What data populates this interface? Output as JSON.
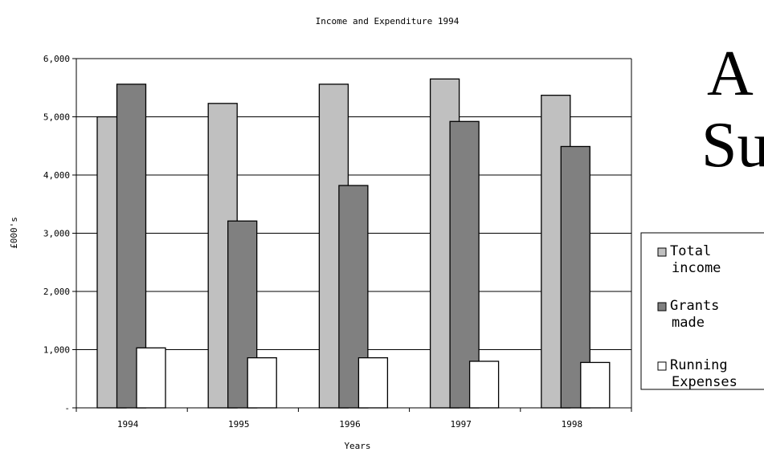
{
  "chart_data": {
    "type": "bar",
    "title": "Income and Expenditure 1994",
    "xlabel": "Years",
    "ylabel": "£000's",
    "categories": [
      "1994",
      "1995",
      "1996",
      "1997",
      "1998"
    ],
    "series": [
      {
        "name": "Total income",
        "values": [
          5000,
          5230,
          5560,
          5650,
          5370
        ],
        "color": "#c0c0c0"
      },
      {
        "name": "Grants made",
        "values": [
          5560,
          3210,
          3820,
          4920,
          4490
        ],
        "color": "#808080"
      },
      {
        "name": "Running Expenses",
        "values": [
          1030,
          860,
          860,
          800,
          780
        ],
        "color": "#ffffff"
      }
    ],
    "ylim": [
      0,
      6000
    ],
    "yticks": [
      {
        "value": 0,
        "label": "-"
      },
      {
        "value": 1000,
        "label": "1,000"
      },
      {
        "value": 2000,
        "label": "2,000"
      },
      {
        "value": 3000,
        "label": "3,000"
      },
      {
        "value": 4000,
        "label": "4,000"
      },
      {
        "value": 5000,
        "label": "5,000"
      },
      {
        "value": 6000,
        "label": "6,000"
      }
    ],
    "grid": true,
    "legend_position": "right"
  },
  "side_text": {
    "line1": "A",
    "line2": "Su"
  }
}
